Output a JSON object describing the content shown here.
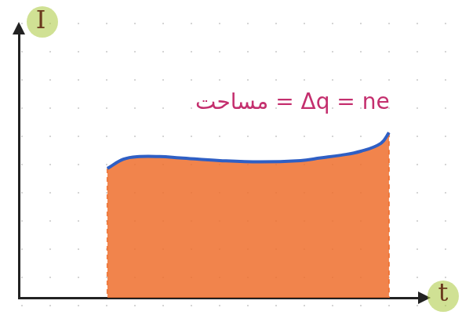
{
  "chart_data": {
    "type": "area",
    "x_label": "t",
    "y_label": "I",
    "annotation": "مساحت = Δq = ne",
    "x": [
      2.2,
      2.6,
      3,
      3.5,
      4,
      5,
      6,
      7,
      7.5,
      8,
      8.5,
      9,
      9.2
    ],
    "values": [
      4.85,
      5.2,
      5.3,
      5.3,
      5.25,
      5.15,
      5.1,
      5.15,
      5.25,
      5.35,
      5.5,
      5.8,
      6.2
    ],
    "color": "#2f5fc4",
    "xlim": [
      0,
      10
    ],
    "ylim": [
      0,
      10
    ],
    "tick_labels": false,
    "grid": false
  }
}
